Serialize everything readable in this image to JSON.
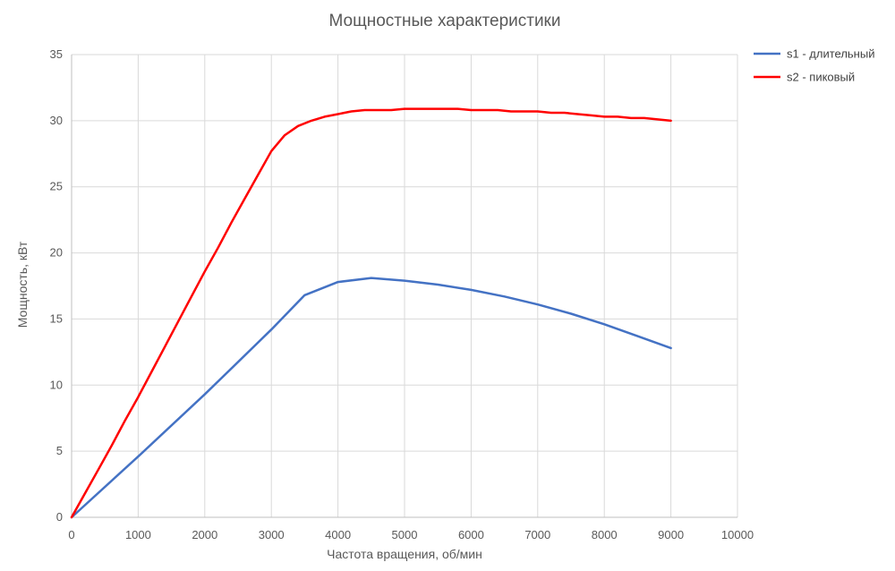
{
  "chart_data": {
    "type": "line",
    "title": "Мощностные характеристики",
    "xlabel": "Частота вращения, об/мин",
    "ylabel": "Мощность, кВт",
    "xlim": [
      0,
      10000
    ],
    "ylim": [
      0,
      35
    ],
    "xticks": [
      0,
      1000,
      2000,
      3000,
      4000,
      5000,
      6000,
      7000,
      8000,
      9000,
      10000
    ],
    "yticks": [
      0,
      5,
      10,
      15,
      20,
      25,
      30,
      35
    ],
    "grid": true,
    "legend_position": "top-right",
    "series": [
      {
        "name": "s1 - длительный",
        "color": "#4472c4",
        "x": [
          0,
          1000,
          2000,
          3000,
          3500,
          4000,
          4500,
          5000,
          5500,
          6000,
          6500,
          7000,
          7500,
          8000,
          8500,
          9000
        ],
        "y": [
          0,
          4.6,
          9.3,
          14.2,
          16.8,
          17.8,
          18.1,
          17.9,
          17.6,
          17.2,
          16.7,
          16.1,
          15.4,
          14.6,
          13.7,
          12.8
        ]
      },
      {
        "name": "s2 - пиковый",
        "color": "#ff0000",
        "x": [
          0,
          200,
          400,
          600,
          800,
          1000,
          1200,
          1400,
          1600,
          1800,
          2000,
          2200,
          2400,
          2600,
          2800,
          3000,
          3200,
          3400,
          3600,
          3800,
          4000,
          4200,
          4400,
          4600,
          4800,
          5000,
          5200,
          5400,
          5600,
          5800,
          6000,
          6200,
          6400,
          6600,
          6800,
          7000,
          7200,
          7400,
          7600,
          7800,
          8000,
          8200,
          8400,
          8600,
          8800,
          9000
        ],
        "y": [
          0,
          1.8,
          3.6,
          5.4,
          7.3,
          9.1,
          11.0,
          12.9,
          14.8,
          16.7,
          18.6,
          20.4,
          22.3,
          24.1,
          25.9,
          27.7,
          28.9,
          29.6,
          30.0,
          30.3,
          30.5,
          30.7,
          30.8,
          30.8,
          30.8,
          30.9,
          30.9,
          30.9,
          30.9,
          30.9,
          30.8,
          30.8,
          30.8,
          30.7,
          30.7,
          30.7,
          30.6,
          30.6,
          30.5,
          30.4,
          30.3,
          30.3,
          30.2,
          30.2,
          30.1,
          30.0
        ]
      }
    ]
  }
}
